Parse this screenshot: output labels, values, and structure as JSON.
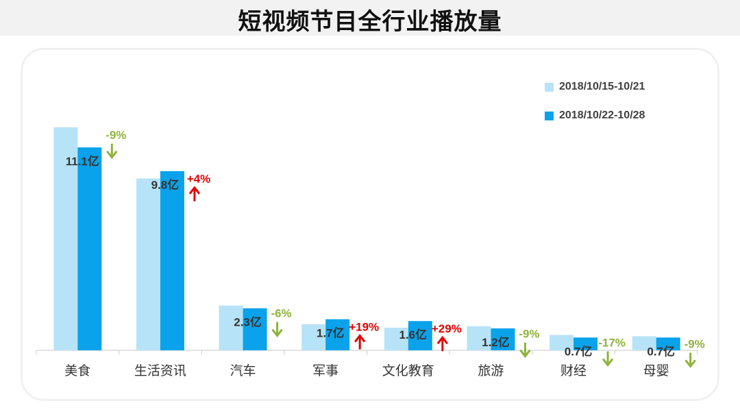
{
  "title": "短视频节目全行业播放量",
  "colors": {
    "prev": "#b7e3f8",
    "curr": "#0aa2ea",
    "down": "#8db33a",
    "up": "#e00000",
    "axis": "#c8c8c8",
    "label": "#333333"
  },
  "chart_data": {
    "type": "bar",
    "title": "短视频节目全行业播放量",
    "unit": "亿",
    "categories": [
      "美食",
      "生活资讯",
      "汽车",
      "军事",
      "文化教育",
      "旅游",
      "财经",
      "母婴"
    ],
    "series": [
      {
        "name": "2018/10/15-10/21",
        "values": [
          12.2,
          9.4,
          2.45,
          1.43,
          1.24,
          1.32,
          0.84,
          0.77
        ]
      },
      {
        "name": "2018/10/22-10/28",
        "values": [
          11.1,
          9.8,
          2.3,
          1.7,
          1.6,
          1.2,
          0.7,
          0.7
        ]
      }
    ],
    "data_labels": [
      "11.1亿",
      "9.8亿",
      "2.3亿",
      "1.7亿",
      "1.6亿",
      "1.2亿",
      "0.7亿",
      "0.7亿"
    ],
    "changes": [
      "-9%",
      "+4%",
      "-6%",
      "+19%",
      "+29%",
      "-9%",
      "-17%",
      "-9%"
    ],
    "change_directions": [
      "down",
      "up",
      "down",
      "up",
      "up",
      "down",
      "down",
      "down"
    ],
    "ylim": [
      0,
      12.5
    ],
    "legend_position": "top-right",
    "grid": false
  }
}
